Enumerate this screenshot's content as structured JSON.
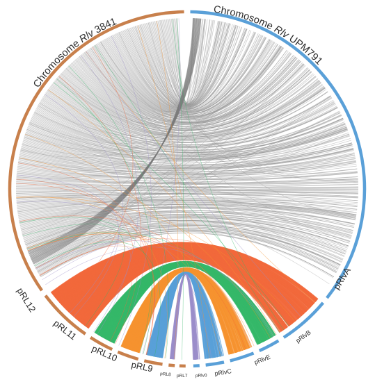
{
  "colors": {
    "background": "#ffffff",
    "rlv3841": "#c8804c",
    "upm791": "#5aa0d8",
    "link_gray": "#9a9a9a",
    "link_orange_red": "#f26a3c",
    "link_green": "#35b86a",
    "link_orange": "#f59330",
    "link_blue": "#5aa0d8",
    "link_purple": "#9b8ec9"
  },
  "diagram": {
    "type": "circos-synteny",
    "segments": [
      {
        "id": "chr3841",
        "genome": "Rlv 3841",
        "label_prefix": "Chromosome ",
        "label_italic": "Rlv",
        "label_suffix": " 3841",
        "size": "big",
        "color": "#c8804c"
      },
      {
        "id": "pRL12",
        "genome": "Rlv 3841",
        "label": "pRL12",
        "size": "mid",
        "color": "#c8804c"
      },
      {
        "id": "pRL11",
        "genome": "Rlv 3841",
        "label": "pRL11",
        "size": "mid",
        "color": "#c8804c"
      },
      {
        "id": "pRL10",
        "genome": "Rlv 3841",
        "label": "pRL10",
        "size": "mid",
        "color": "#c8804c"
      },
      {
        "id": "pRL9",
        "genome": "Rlv 3841",
        "label": "pRL9",
        "size": "mid",
        "color": "#c8804c"
      },
      {
        "id": "pRL8",
        "genome": "Rlv 3841",
        "label": "pRL8",
        "size": "tiny",
        "color": "#c8804c"
      },
      {
        "id": "pRL7",
        "genome": "Rlv 3841",
        "label": "pRL7",
        "size": "tiny",
        "color": "#c8804c"
      },
      {
        "id": "pRlv0",
        "genome": "Rlv UPM791",
        "label": "pRlv0",
        "size": "tiny",
        "color": "#5aa0d8"
      },
      {
        "id": "pRlvC",
        "genome": "Rlv UPM791",
        "label": "pRlvC",
        "size": "small",
        "color": "#5aa0d8"
      },
      {
        "id": "pRlvE",
        "genome": "Rlv UPM791",
        "label": "pRlvE",
        "size": "small",
        "color": "#5aa0d8"
      },
      {
        "id": "pRlvB",
        "genome": "Rlv UPM791",
        "label": "pRlvB",
        "size": "small",
        "color": "#5aa0d8"
      },
      {
        "id": "pRlvA",
        "genome": "Rlv UPM791",
        "label": "pRlvA",
        "size": "mid",
        "color": "#5aa0d8"
      },
      {
        "id": "chrUPM791",
        "genome": "Rlv UPM791",
        "label_prefix": "Chromosome ",
        "label_italic": "Rlv",
        "label_suffix": " UPM791",
        "size": "big",
        "color": "#5aa0d8"
      }
    ],
    "link_groups": [
      {
        "from": "chr3841",
        "to": "chrUPM791",
        "color": "#9a9a9a"
      },
      {
        "from": "pRL12",
        "to": "pRlvA",
        "color": "#f26a3c"
      },
      {
        "from": "pRL11",
        "to": "pRlvB",
        "color": "#35b86a"
      },
      {
        "from": "pRL10",
        "to": "pRlvE",
        "color": "#f59330"
      },
      {
        "from": "pRL9",
        "to": "pRlvC",
        "color": "#5aa0d8"
      },
      {
        "from": "pRL8",
        "to": "pRlv0",
        "color": "#9b8ec9"
      }
    ]
  }
}
